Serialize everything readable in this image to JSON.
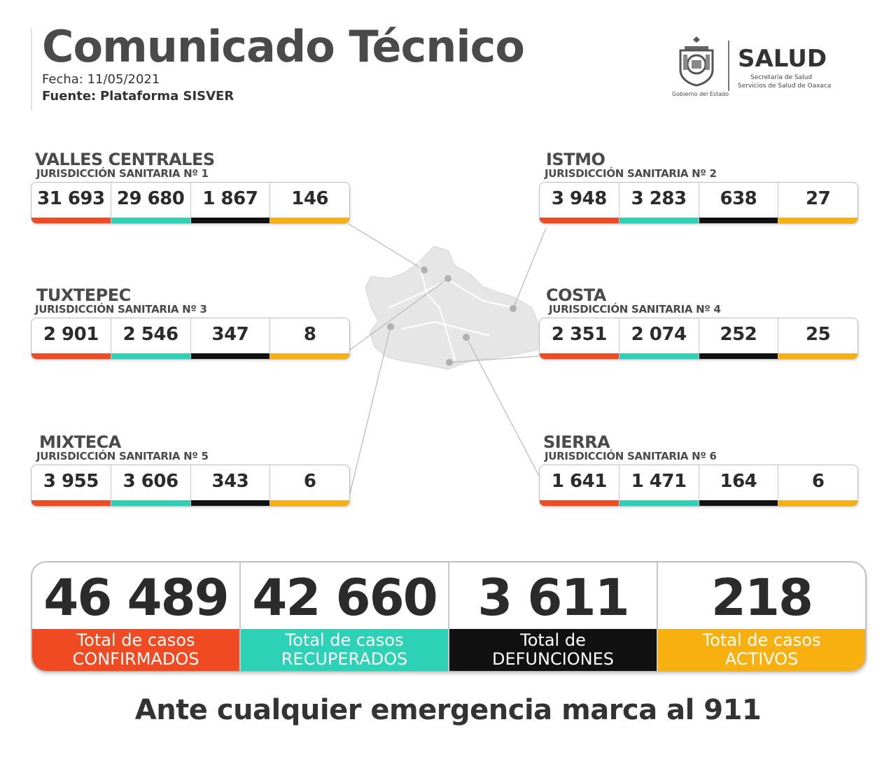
{
  "header": {
    "title": "Comunicado Técnico",
    "fecha_label": "Fecha:",
    "fecha_value": "11/05/2021",
    "fuente_label": "Fuente:",
    "fuente_value": "Plataforma SISVER"
  },
  "logo": {
    "gobierno": "Gobierno del Estado",
    "salud": "SALUD",
    "line1": "Secretaría de Salud",
    "line2": "Servicios de Salud de Oaxaca"
  },
  "colors": {
    "confirmados": "#f04a22",
    "recuperados": "#2dd2b6",
    "defunciones": "#111111",
    "activos": "#f7b010"
  },
  "regions": {
    "valles": {
      "name": "VALLES CENTRALES",
      "sub": "JURISDICCIÓN SANITARIA Nº 1",
      "values": [
        "31 693",
        "29 680",
        "1 867",
        "146"
      ]
    },
    "istmo": {
      "name": "ISTMO",
      "sub": "JURISDICCIÓN SANITARIA Nº 2",
      "values": [
        "3 948",
        "3 283",
        "638",
        "27"
      ]
    },
    "tuxtepec": {
      "name": "TUXTEPEC",
      "sub": "JURISDICCIÓN SANITARIA Nº 3",
      "values": [
        "2 901",
        "2 546",
        "347",
        "8"
      ]
    },
    "costa": {
      "name": "COSTA",
      "sub": "JURISDICCIÓN SANITARIA Nº 4",
      "values": [
        "2 351",
        "2 074",
        "252",
        "25"
      ]
    },
    "mixteca": {
      "name": "MIXTECA",
      "sub": "JURISDICCIÓN SANITARIA Nº 5",
      "values": [
        "3 955",
        "3 606",
        "343",
        "6"
      ]
    },
    "sierra": {
      "name": "SIERRA",
      "sub": "JURISDICCIÓN SANITARIA Nº 6",
      "values": [
        "1 641",
        "1 471",
        "164",
        "6"
      ]
    }
  },
  "totals": [
    {
      "value": "46 489",
      "line1": "Total de casos",
      "line2": "CONFIRMADOS"
    },
    {
      "value": "42 660",
      "line1": "Total de casos",
      "line2": "RECUPERADOS"
    },
    {
      "value": "3 611",
      "line1": "Total de",
      "line2": "DEFUNCIONES"
    },
    {
      "value": "218",
      "line1": "Total de casos",
      "line2": "ACTIVOS"
    }
  ],
  "footer": "Ante cualquier emergencia marca al 911"
}
